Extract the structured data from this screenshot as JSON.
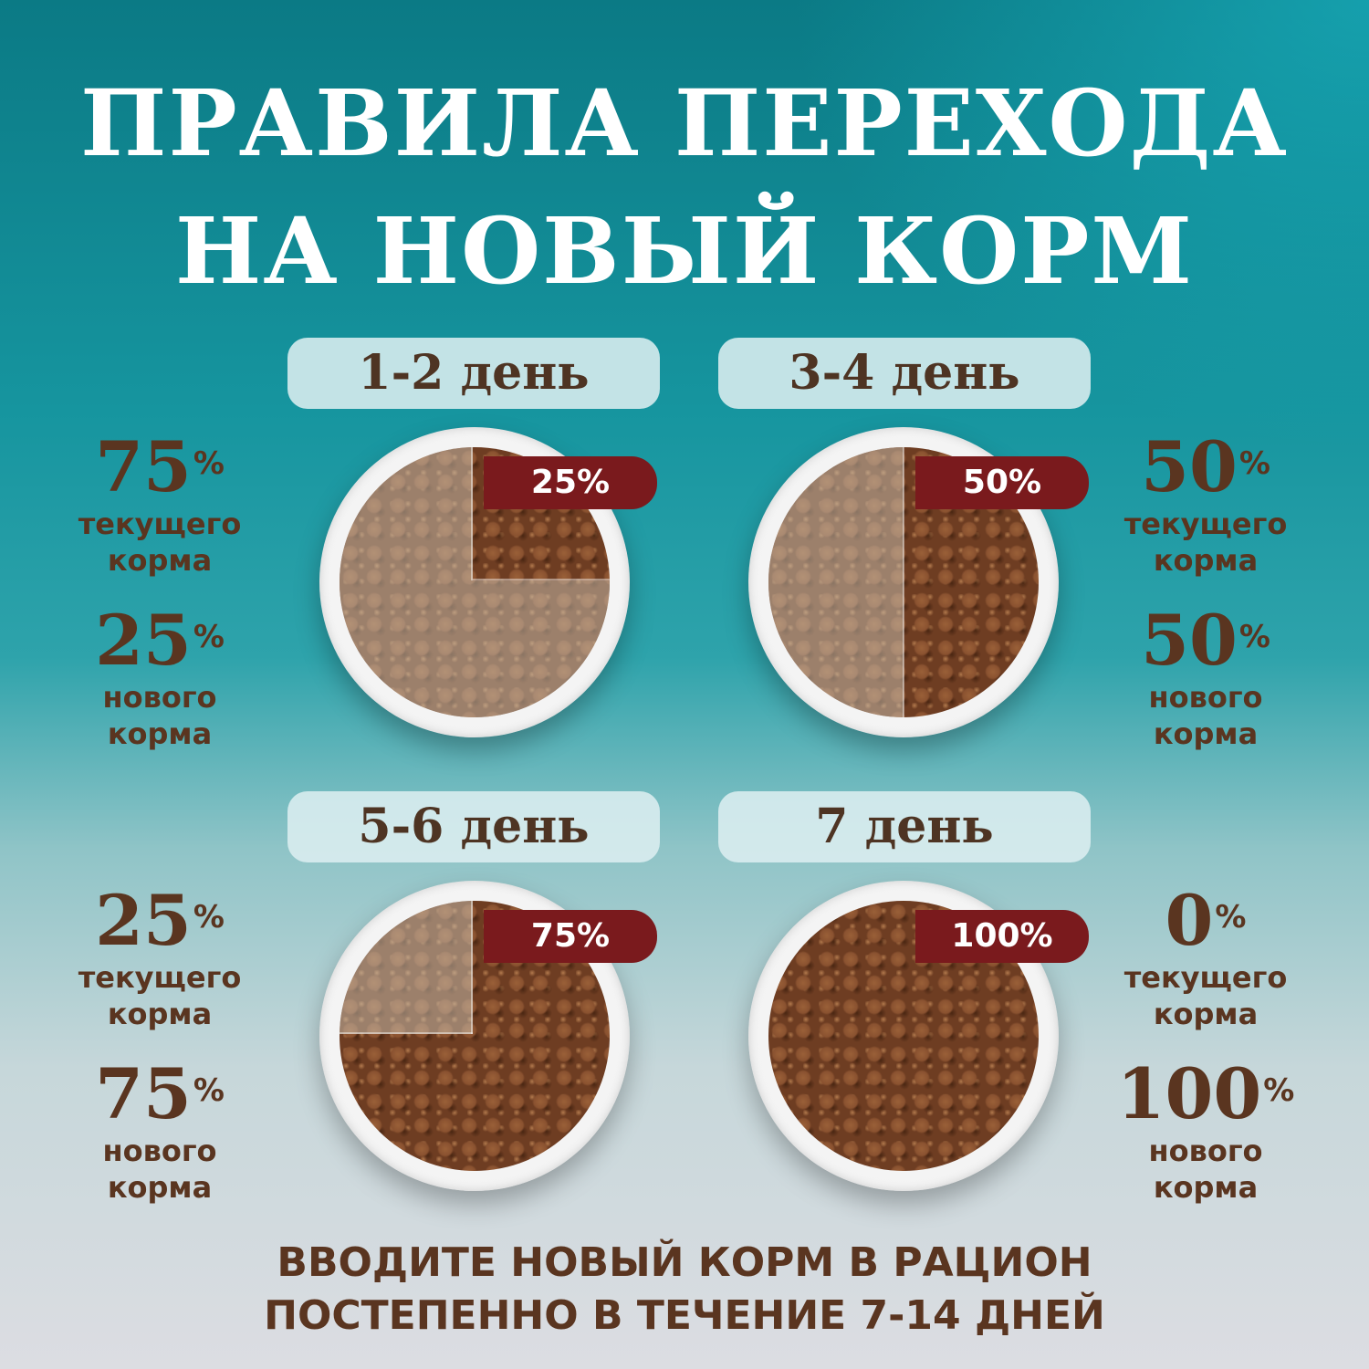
{
  "title": {
    "line1": "ПРАВИЛА ПЕРЕХОДА",
    "line2": "НА НОВЫЙ КОРМ"
  },
  "stages": [
    {
      "day": "1-2 день",
      "tag": "25%",
      "current": {
        "value": "75",
        "unit": "%",
        "label1": "текущего",
        "label2": "корма"
      },
      "new": {
        "value": "25",
        "unit": "%",
        "label1": "нового",
        "label2": "корма"
      }
    },
    {
      "day": "3-4 день",
      "tag": "50%",
      "current": {
        "value": "50",
        "unit": "%",
        "label1": "текущего",
        "label2": "корма"
      },
      "new": {
        "value": "50",
        "unit": "%",
        "label1": "нового",
        "label2": "корма"
      }
    },
    {
      "day": "5-6 день",
      "tag": "75%",
      "current": {
        "value": "25",
        "unit": "%",
        "label1": "текущего",
        "label2": "корма"
      },
      "new": {
        "value": "75",
        "unit": "%",
        "label1": "нового",
        "label2": "корма"
      }
    },
    {
      "day": "7 день",
      "tag": "100%",
      "current": {
        "value": "0",
        "unit": "%",
        "label1": "текущего",
        "label2": "корма"
      },
      "new": {
        "value": "100",
        "unit": "%",
        "label1": "нового",
        "label2": "корма"
      }
    }
  ],
  "footer": {
    "line1": "ВВОДИТЕ НОВЫЙ КОРМ В РАЦИОН",
    "line2": "ПОСТЕПЕННО В ТЕЧЕНИЕ 7-14 ДНЕЙ"
  },
  "colors": {
    "accent_tag": "#7a1a1d",
    "text_brown": "#5a3520",
    "title_white": "#ffffff"
  }
}
